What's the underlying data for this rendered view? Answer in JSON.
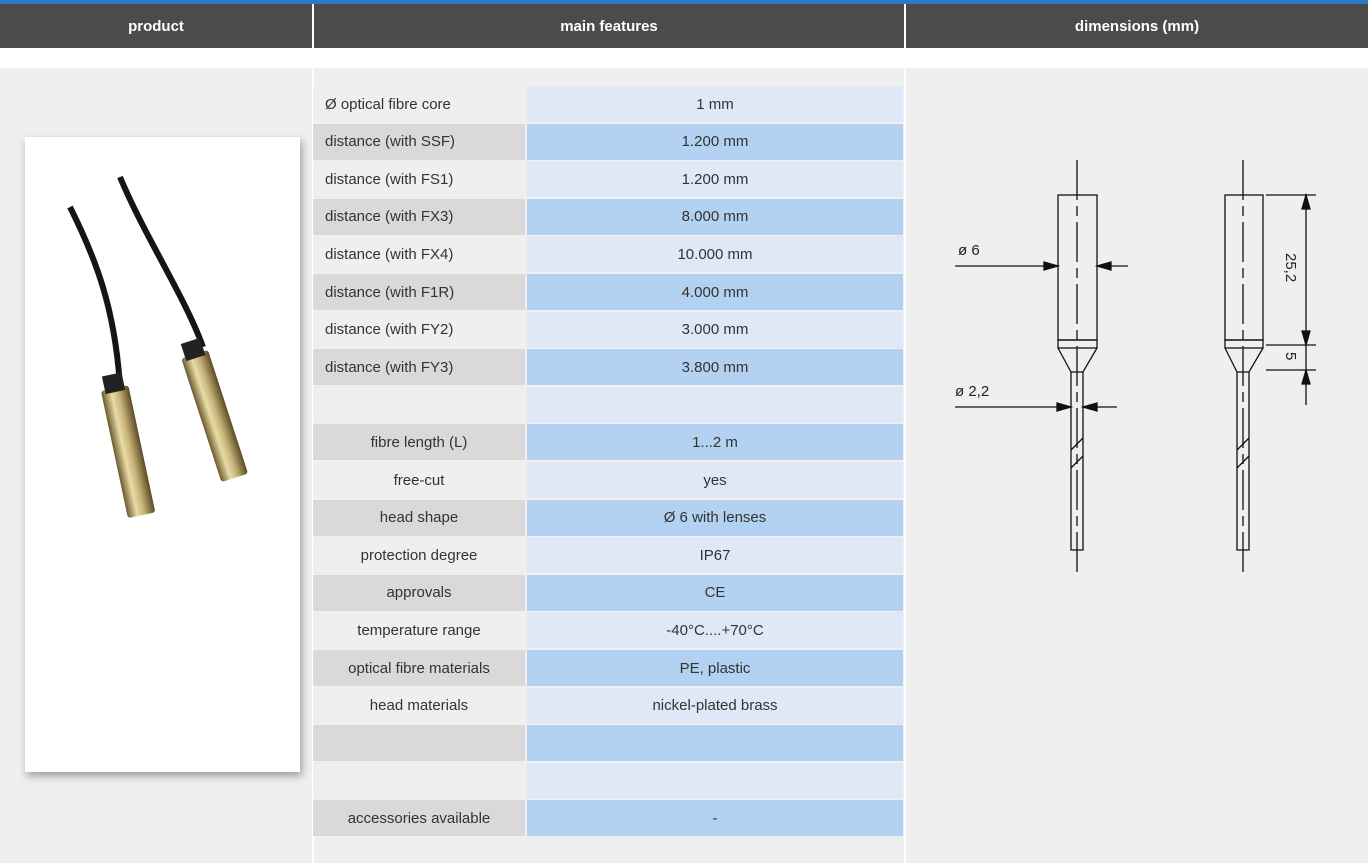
{
  "header": {
    "columns": [
      "product",
      "main features",
      "dimensions (mm)"
    ]
  },
  "features": {
    "rows": [
      [
        "Ø optical fibre core",
        "1 mm"
      ],
      [
        "distance (with SSF)",
        "1.200 mm"
      ],
      [
        "distance (with FS1)",
        "1.200 mm"
      ],
      [
        "distance (with FX3)",
        "8.000 mm"
      ],
      [
        "distance (with FX4)",
        "10.000 mm"
      ],
      [
        "distance (with F1R)",
        "4.000 mm"
      ],
      [
        "distance (with FY2)",
        "3.000 mm"
      ],
      [
        "distance (with FY3)",
        "3.800 mm"
      ],
      [
        null,
        null
      ],
      [
        "fibre length (L)",
        "1...2 m"
      ],
      [
        "free-cut",
        "yes"
      ],
      [
        "head shape",
        "Ø 6 with lenses"
      ],
      [
        "protection degree",
        "IP67"
      ],
      [
        "approvals",
        "CE"
      ],
      [
        "temperature range",
        "-40°C....+70°C"
      ],
      [
        "optical fibre materials",
        "PE, plastic"
      ],
      [
        "head materials",
        "nickel-plated brass"
      ],
      [
        null,
        null
      ],
      [
        null,
        null
      ],
      [
        "accessories available",
        "-"
      ]
    ]
  },
  "dimensions": {
    "head_diameter": "ø 6",
    "fibre_diameter": "ø 2,2",
    "head_length": "25,2",
    "taper_length": "5"
  }
}
